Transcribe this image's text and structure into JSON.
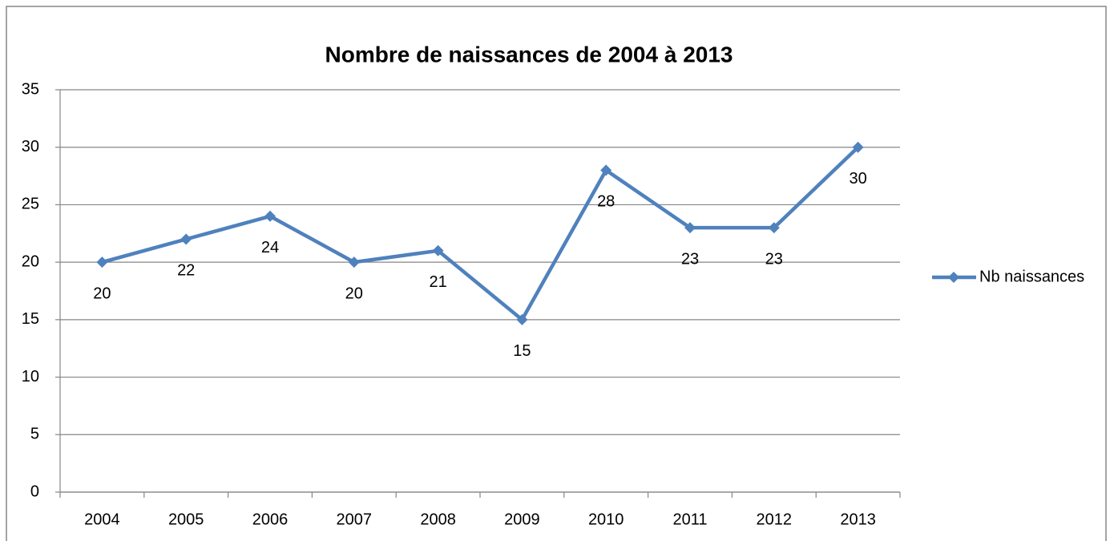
{
  "chart_data": {
    "type": "line",
    "title": "Nombre de naissances de 2004 à 2013",
    "categories": [
      "2004",
      "2005",
      "2006",
      "2007",
      "2008",
      "2009",
      "2010",
      "2011",
      "2012",
      "2013"
    ],
    "series": [
      {
        "name": "Nb naissances",
        "color": "#4f81bd",
        "values": [
          20,
          22,
          24,
          20,
          21,
          15,
          28,
          23,
          23,
          30
        ]
      }
    ],
    "ylim": [
      0,
      35
    ],
    "yticks": [
      0,
      5,
      10,
      15,
      20,
      25,
      30,
      35
    ],
    "grid": true,
    "legend": "right",
    "data_labels": true
  }
}
